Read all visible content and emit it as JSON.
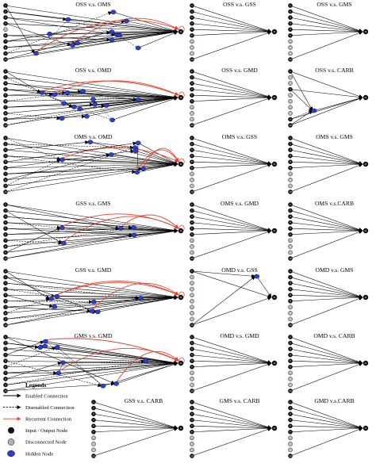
{
  "colors": {
    "io_node": "#111111",
    "disconnected_node": "#a9b5b3",
    "hidden_node": "#2b3fd6",
    "enabled": "#000000",
    "disabled": "#000000",
    "recurrent": "#e8412e",
    "output_ring": "#000000"
  },
  "panels": [
    {
      "title": "OSS v.s. OMS",
      "disconnected": [
        5
      ],
      "hidden": 12,
      "recurrent": 2
    },
    {
      "title": "OSS v.s. GSS",
      "disconnected": [
        7,
        8,
        9
      ],
      "hidden": 0,
      "recurrent": 0
    },
    {
      "title": "OSS v.s. GMS",
      "disconnected": [
        7,
        8,
        9
      ],
      "hidden": 0,
      "recurrent": 0
    },
    {
      "title": "OSS v.s. OMD",
      "disconnected": [],
      "hidden": 14,
      "recurrent": 2
    },
    {
      "title": "OSS v.s. GMD",
      "disconnected": [
        7,
        8,
        9
      ],
      "hidden": 0,
      "recurrent": 0
    },
    {
      "title": "OSS v.s. CARB",
      "disconnected": [
        2,
        3,
        5,
        6,
        7,
        8
      ],
      "hidden": 1,
      "recurrent": 0
    },
    {
      "title": "OMS v.s. OMD",
      "disconnected": [],
      "hidden": 8,
      "recurrent": 3
    },
    {
      "title": "OMS v.s. GSS",
      "disconnected": [
        7,
        8,
        9
      ],
      "hidden": 0,
      "recurrent": 0
    },
    {
      "title": "OMS v.s. GMS",
      "disconnected": [
        7,
        8,
        9
      ],
      "hidden": 0,
      "recurrent": 0
    },
    {
      "title": "GSS v.s. GMS",
      "disconnected": [],
      "hidden": 5,
      "recurrent": 3
    },
    {
      "title": "OMS v.s. GMD",
      "disconnected": [
        7,
        8,
        9
      ],
      "hidden": 0,
      "recurrent": 0
    },
    {
      "title": "OMS v.s.CARB",
      "disconnected": [
        7,
        8,
        9
      ],
      "hidden": 0,
      "recurrent": 0
    },
    {
      "title": "GSS v.s. GMD",
      "disconnected": [],
      "hidden": 7,
      "recurrent": 3
    },
    {
      "title": "OMD v.s. GSS",
      "disconnected": [
        2,
        3,
        4,
        5,
        6,
        7,
        8,
        9
      ],
      "hidden": 1,
      "recurrent": 0
    },
    {
      "title": "OMD v.s. GMS",
      "disconnected": [
        7,
        8,
        9
      ],
      "hidden": 0,
      "recurrent": 0
    },
    {
      "title": "GMS v.s. GMD",
      "disconnected": [],
      "hidden": 9,
      "recurrent": 3
    },
    {
      "title": "OMD v.s. GMD",
      "disconnected": [
        7,
        8,
        9
      ],
      "hidden": 0,
      "recurrent": 0
    },
    {
      "title": "OMD v.s. CARB",
      "disconnected": [
        7,
        8,
        9
      ],
      "hidden": 0,
      "recurrent": 0
    },
    {
      "title": "GSS v.s. CARB",
      "disconnected": [
        7,
        8,
        9
      ],
      "hidden": 0,
      "recurrent": 0
    },
    {
      "title": "GMS v.s. CARB",
      "disconnected": [
        7,
        8,
        9
      ],
      "hidden": 0,
      "recurrent": 0
    },
    {
      "title": "GMD v.s.CARB",
      "disconnected": [
        7,
        8,
        9
      ],
      "hidden": 0,
      "recurrent": 0
    }
  ],
  "node_labels": [
    "1",
    "2",
    "3",
    "4",
    "5",
    "6",
    "7",
    "8",
    "9",
    "10"
  ],
  "output_label": "11",
  "legend": {
    "title": "Legends",
    "items": [
      {
        "label": "Enabled Connection",
        "kind": "enabled"
      },
      {
        "label": "Disenabled Connection",
        "kind": "disabled"
      },
      {
        "label": "Recurrent Connection",
        "kind": "recurrent"
      },
      {
        "label": "Input / Output Node",
        "kind": "io"
      },
      {
        "label": "Disconnected Node",
        "kind": "disc"
      },
      {
        "label": "Hidden Node",
        "kind": "hidden"
      }
    ]
  }
}
